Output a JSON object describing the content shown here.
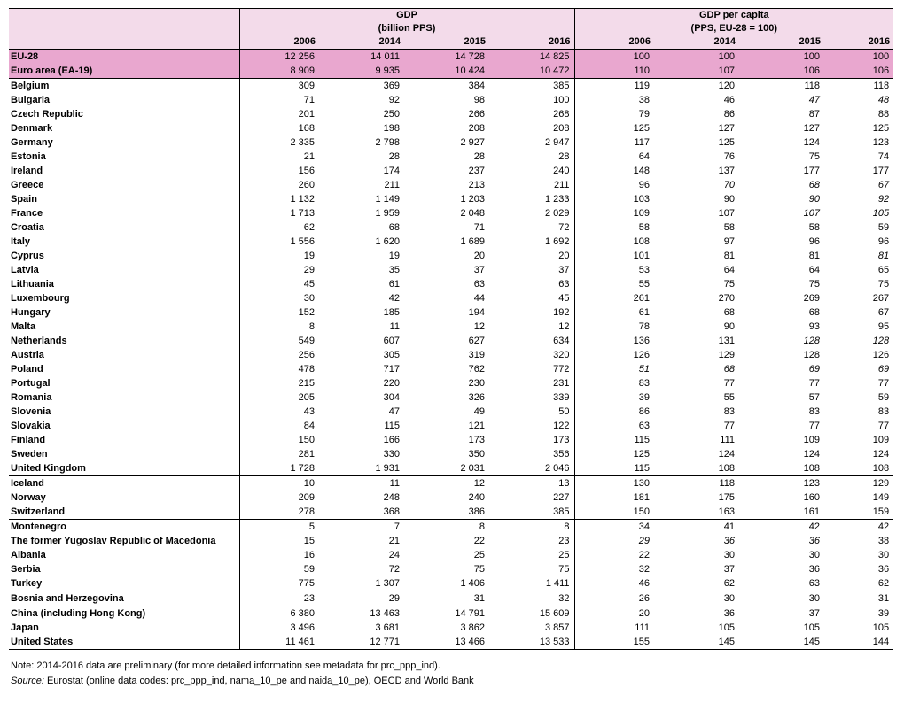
{
  "header": {
    "gdp_title": "GDP",
    "gdp_unit": "(billion PPS)",
    "gdppc_title": "GDP per capita",
    "gdppc_unit": "(PPS, EU-28 = 100)",
    "years": [
      "2006",
      "2014",
      "2015",
      "2016",
      "2006",
      "2014",
      "2015",
      "2016"
    ]
  },
  "groups": [
    {
      "aggregate": true,
      "rows": [
        {
          "country": "EU-28",
          "values": [
            "12 256",
            "14 011",
            "14 728",
            "14 825",
            "100",
            "100",
            "100",
            "100"
          ],
          "italic": []
        },
        {
          "country": "Euro area (EA-19)",
          "values": [
            "8 909",
            "9 935",
            "10 424",
            "10 472",
            "110",
            "107",
            "106",
            "106"
          ],
          "italic": []
        }
      ]
    },
    {
      "aggregate": false,
      "rows": [
        {
          "country": "Belgium",
          "values": [
            "309",
            "369",
            "384",
            "385",
            "119",
            "120",
            "118",
            "118"
          ],
          "italic": []
        },
        {
          "country": "Bulgaria",
          "values": [
            "71",
            "92",
            "98",
            "100",
            "38",
            "46",
            "47",
            "48"
          ],
          "italic": [
            6,
            7
          ]
        },
        {
          "country": "Czech Republic",
          "values": [
            "201",
            "250",
            "266",
            "268",
            "79",
            "86",
            "87",
            "88"
          ],
          "italic": []
        },
        {
          "country": "Denmark",
          "values": [
            "168",
            "198",
            "208",
            "208",
            "125",
            "127",
            "127",
            "125"
          ],
          "italic": []
        },
        {
          "country": "Germany",
          "values": [
            "2 335",
            "2 798",
            "2 927",
            "2 947",
            "117",
            "125",
            "124",
            "123"
          ],
          "italic": []
        },
        {
          "country": "Estonia",
          "values": [
            "21",
            "28",
            "28",
            "28",
            "64",
            "76",
            "75",
            "74"
          ],
          "italic": []
        },
        {
          "country": "Ireland",
          "values": [
            "156",
            "174",
            "237",
            "240",
            "148",
            "137",
            "177",
            "177"
          ],
          "italic": []
        },
        {
          "country": "Greece",
          "values": [
            "260",
            "211",
            "213",
            "211",
            "96",
            "70",
            "68",
            "67"
          ],
          "italic": [
            5,
            6,
            7
          ]
        },
        {
          "country": "Spain",
          "values": [
            "1 132",
            "1 149",
            "1 203",
            "1 233",
            "103",
            "90",
            "90",
            "92"
          ],
          "italic": [
            6,
            7
          ]
        },
        {
          "country": "France",
          "values": [
            "1 713",
            "1 959",
            "2 048",
            "2 029",
            "109",
            "107",
            "107",
            "105"
          ],
          "italic": [
            6,
            7
          ]
        },
        {
          "country": "Croatia",
          "values": [
            "62",
            "68",
            "71",
            "72",
            "58",
            "58",
            "58",
            "59"
          ],
          "italic": []
        },
        {
          "country": "Italy",
          "values": [
            "1 556",
            "1 620",
            "1 689",
            "1 692",
            "108",
            "97",
            "96",
            "96"
          ],
          "italic": []
        },
        {
          "country": "Cyprus",
          "values": [
            "19",
            "19",
            "20",
            "20",
            "101",
            "81",
            "81",
            "81"
          ],
          "italic": [
            7
          ]
        },
        {
          "country": "Latvia",
          "values": [
            "29",
            "35",
            "37",
            "37",
            "53",
            "64",
            "64",
            "65"
          ],
          "italic": []
        },
        {
          "country": "Lithuania",
          "values": [
            "45",
            "61",
            "63",
            "63",
            "55",
            "75",
            "75",
            "75"
          ],
          "italic": []
        },
        {
          "country": "Luxembourg",
          "values": [
            "30",
            "42",
            "44",
            "45",
            "261",
            "270",
            "269",
            "267"
          ],
          "italic": []
        },
        {
          "country": "Hungary",
          "values": [
            "152",
            "185",
            "194",
            "192",
            "61",
            "68",
            "68",
            "67"
          ],
          "italic": []
        },
        {
          "country": "Malta",
          "values": [
            "8",
            "11",
            "12",
            "12",
            "78",
            "90",
            "93",
            "95"
          ],
          "italic": []
        },
        {
          "country": "Netherlands",
          "values": [
            "549",
            "607",
            "627",
            "634",
            "136",
            "131",
            "128",
            "128"
          ],
          "italic": [
            6,
            7
          ]
        },
        {
          "country": "Austria",
          "values": [
            "256",
            "305",
            "319",
            "320",
            "126",
            "129",
            "128",
            "126"
          ],
          "italic": []
        },
        {
          "country": "Poland",
          "values": [
            "478",
            "717",
            "762",
            "772",
            "51",
            "68",
            "69",
            "69"
          ],
          "italic": [
            4,
            5,
            6,
            7
          ]
        },
        {
          "country": "Portugal",
          "values": [
            "215",
            "220",
            "230",
            "231",
            "83",
            "77",
            "77",
            "77"
          ],
          "italic": []
        },
        {
          "country": "Romania",
          "values": [
            "205",
            "304",
            "326",
            "339",
            "39",
            "55",
            "57",
            "59"
          ],
          "italic": []
        },
        {
          "country": "Slovenia",
          "values": [
            "43",
            "47",
            "49",
            "50",
            "86",
            "83",
            "83",
            "83"
          ],
          "italic": []
        },
        {
          "country": "Slovakia",
          "values": [
            "84",
            "115",
            "121",
            "122",
            "63",
            "77",
            "77",
            "77"
          ],
          "italic": []
        },
        {
          "country": "Finland",
          "values": [
            "150",
            "166",
            "173",
            "173",
            "115",
            "111",
            "109",
            "109"
          ],
          "italic": []
        },
        {
          "country": "Sweden",
          "values": [
            "281",
            "330",
            "350",
            "356",
            "125",
            "124",
            "124",
            "124"
          ],
          "italic": []
        },
        {
          "country": "United Kingdom",
          "values": [
            "1 728",
            "1 931",
            "2 031",
            "2 046",
            "115",
            "108",
            "108",
            "108"
          ],
          "italic": []
        }
      ]
    },
    {
      "aggregate": false,
      "rows": [
        {
          "country": "Iceland",
          "values": [
            "10",
            "11",
            "12",
            "13",
            "130",
            "118",
            "123",
            "129"
          ],
          "italic": []
        },
        {
          "country": "Norway",
          "values": [
            "209",
            "248",
            "240",
            "227",
            "181",
            "175",
            "160",
            "149"
          ],
          "italic": []
        },
        {
          "country": "Switzerland",
          "values": [
            "278",
            "368",
            "386",
            "385",
            "150",
            "163",
            "161",
            "159"
          ],
          "italic": []
        }
      ]
    },
    {
      "aggregate": false,
      "rows": [
        {
          "country": "Montenegro",
          "values": [
            "5",
            "7",
            "8",
            "8",
            "34",
            "41",
            "42",
            "42"
          ],
          "italic": []
        },
        {
          "country": "The former Yugoslav Republic of Macedonia",
          "values": [
            "15",
            "21",
            "22",
            "23",
            "29",
            "36",
            "36",
            "38"
          ],
          "italic": [
            4,
            5,
            6
          ]
        },
        {
          "country": "Albania",
          "values": [
            "16",
            "24",
            "25",
            "25",
            "22",
            "30",
            "30",
            "30"
          ],
          "italic": []
        },
        {
          "country": "Serbia",
          "values": [
            "59",
            "72",
            "75",
            "75",
            "32",
            "37",
            "36",
            "36"
          ],
          "italic": []
        },
        {
          "country": "Turkey",
          "values": [
            "775",
            "1 307",
            "1 406",
            "1 411",
            "46",
            "62",
            "63",
            "62"
          ],
          "italic": []
        }
      ]
    },
    {
      "aggregate": false,
      "rows": [
        {
          "country": "Bosnia and Herzegovina",
          "values": [
            "23",
            "29",
            "31",
            "32",
            "26",
            "30",
            "30",
            "31"
          ],
          "italic": []
        }
      ]
    },
    {
      "aggregate": false,
      "rows": [
        {
          "country": "China (including Hong Kong)",
          "values": [
            "6 380",
            "13 463",
            "14 791",
            "15 609",
            "20",
            "36",
            "37",
            "39"
          ],
          "italic": []
        },
        {
          "country": "Japan",
          "values": [
            "3 496",
            "3 681",
            "3 862",
            "3 857",
            "111",
            "105",
            "105",
            "105"
          ],
          "italic": []
        },
        {
          "country": "United States",
          "values": [
            "11 461",
            "12 771",
            "13 466",
            "13 533",
            "155",
            "145",
            "145",
            "144"
          ],
          "italic": []
        }
      ]
    }
  ],
  "notes": {
    "note": "Note: 2014-2016 data are preliminary (for more detailed information see metadata for prc_ppp_ind).",
    "source_label": "Source:",
    "source_text": " Eurostat (online data codes: prc_ppp_ind, nama_10_pe and naida_10_pe), OECD and World Bank"
  }
}
